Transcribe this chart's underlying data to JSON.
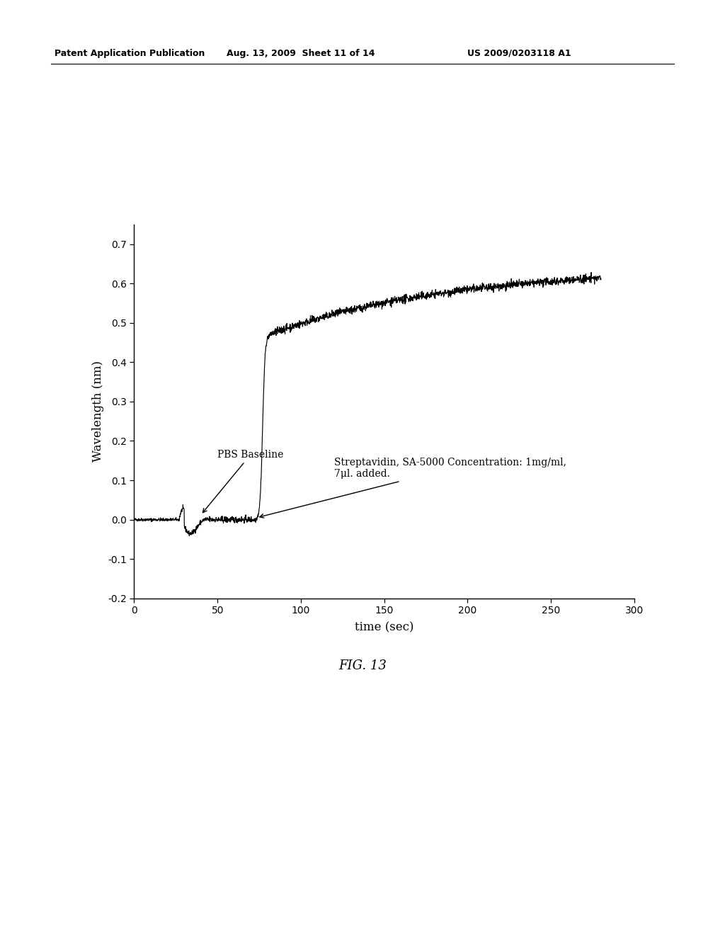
{
  "header_left": "Patent Application Publication",
  "header_mid": "Aug. 13, 2009  Sheet 11 of 14",
  "header_right": "US 2009/0203118 A1",
  "fig_label": "FIG. 13",
  "xlabel": "time (sec)",
  "ylabel": "Wavelength (nm)",
  "xlim": [
    0,
    300
  ],
  "ylim": [
    -0.2,
    0.75
  ],
  "yticks": [
    -0.2,
    -0.1,
    0.0,
    0.1,
    0.2,
    0.3,
    0.4,
    0.5,
    0.6,
    0.7
  ],
  "xticks": [
    0,
    50,
    100,
    150,
    200,
    250,
    300
  ],
  "annotation_pbs": "PBS Baseline",
  "annotation_sa": "Streptavidin, SA-5000 Concentration: 1mg/ml,\n7μl. added.",
  "line_color": "#000000",
  "background_color": "#ffffff",
  "header_fontsize": 9,
  "axis_label_fontsize": 12,
  "tick_fontsize": 10,
  "annotation_fontsize": 10,
  "fig_label_fontsize": 13
}
